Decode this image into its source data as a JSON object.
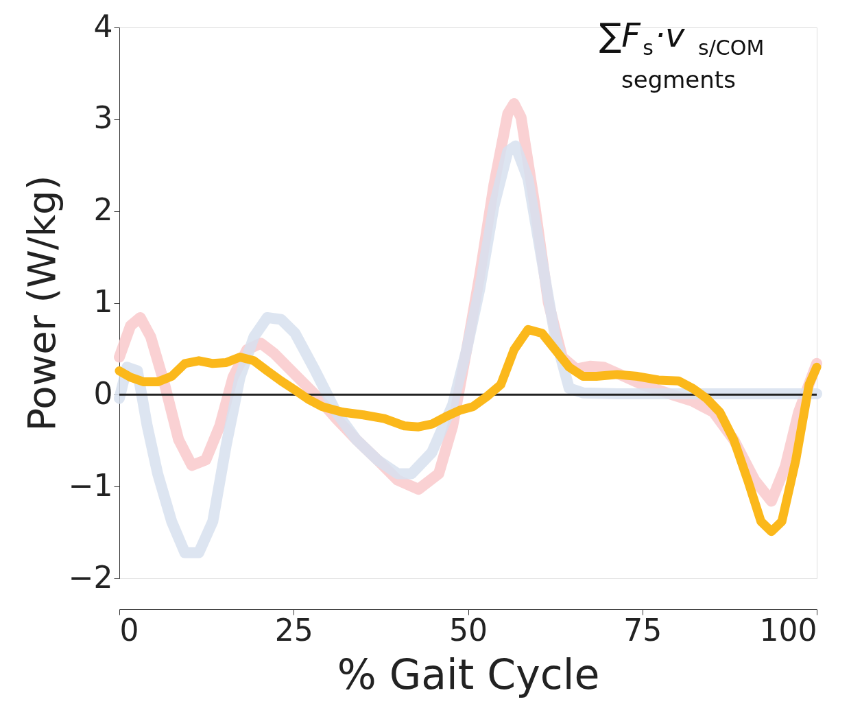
{
  "chart_data": {
    "type": "line",
    "xlabel": "% Gait Cycle",
    "ylabel": "Power (W/kg)",
    "xlim": [
      0,
      100
    ],
    "xticks": [
      0,
      25,
      50,
      75,
      100
    ],
    "ylim": [
      -2,
      4
    ],
    "yticks": [
      -2,
      -1,
      0,
      1,
      2,
      3,
      4
    ],
    "grid": false,
    "marker": "none",
    "line_style": "solid",
    "annotations": [
      "∑F$_{s}$·v$_{s/COM}$",
      "segments"
    ],
    "ref_lines": [
      {
        "axis": "y",
        "value": 0,
        "color": "#222222"
      }
    ],
    "series": [
      {
        "color": "#f9c9cb",
        "x": [
          0,
          1.6,
          3,
          4.5,
          6.5,
          8.5,
          10.4,
          12.4,
          14.4,
          16.3,
          18.3,
          20.3,
          22.2,
          25.2,
          28.1,
          31.1,
          34,
          37,
          39.9,
          42.9,
          45.8,
          47.8,
          49.8,
          51.7,
          53.7,
          55.7,
          56.6,
          57.6,
          59.6,
          61.5,
          63.5,
          65.5,
          67.5,
          69.4,
          72.4,
          75.3,
          79.3,
          82.2,
          85.2,
          88.1,
          91.1,
          93.5,
          95.5,
          97.4,
          100
        ],
        "values": [
          0.41,
          0.75,
          0.84,
          0.63,
          0.11,
          -0.49,
          -0.77,
          -0.71,
          -0.34,
          0.19,
          0.49,
          0.56,
          0.45,
          0.22,
          0,
          -0.26,
          -0.49,
          -0.71,
          -0.93,
          -1.03,
          -0.86,
          -0.34,
          0.49,
          1.31,
          2.28,
          3.06,
          3.17,
          3.02,
          2.05,
          1.01,
          0.41,
          0.28,
          0.31,
          0.3,
          0.2,
          0.1,
          0,
          -0.07,
          -0.19,
          -0.49,
          -0.93,
          -1.16,
          -0.78,
          -0.19,
          0.34
        ]
      },
      {
        "color": "#d7e1ef",
        "x": [
          0,
          1.1,
          2.6,
          4,
          5.5,
          7.5,
          9.4,
          11.4,
          13.4,
          15.3,
          17.3,
          19.3,
          21.2,
          23.2,
          25.2,
          28.1,
          31.1,
          34,
          37,
          39.9,
          41.9,
          44.8,
          47.8,
          49.8,
          51.7,
          53.7,
          55.7,
          56.8,
          58.6,
          60.6,
          62.5,
          64.5,
          66.5,
          71.4,
          81.2,
          91.1,
          100
        ],
        "values": [
          -0.04,
          0.3,
          0.26,
          -0.34,
          -0.86,
          -1.38,
          -1.72,
          -1.72,
          -1.38,
          -0.56,
          0.19,
          0.63,
          0.84,
          0.82,
          0.67,
          0.26,
          -0.19,
          -0.49,
          -0.71,
          -0.86,
          -0.86,
          -0.63,
          -0.11,
          0.49,
          1.16,
          2.05,
          2.65,
          2.71,
          2.35,
          1.46,
          0.63,
          0.07,
          0.02,
          0.01,
          0.01,
          0.01,
          0.01
        ]
      },
      {
        "color": "#fbb81b",
        "x": [
          0,
          1.6,
          3.5,
          5.5,
          7.5,
          9.4,
          11.4,
          13.4,
          15.3,
          17.3,
          19.3,
          21.2,
          23.2,
          25.2,
          27.1,
          29.1,
          32,
          35,
          38,
          40.9,
          42.9,
          44.8,
          46.8,
          48.8,
          50.7,
          52.7,
          54.7,
          56.6,
          58.6,
          60.6,
          62.5,
          64.5,
          66.5,
          68.4,
          71.4,
          74.3,
          77.3,
          80.2,
          82.2,
          84.2,
          86.1,
          88.1,
          90.1,
          92,
          93.5,
          95,
          97,
          98.9,
          100
        ],
        "values": [
          0.26,
          0.19,
          0.14,
          0.14,
          0.2,
          0.34,
          0.37,
          0.34,
          0.35,
          0.41,
          0.37,
          0.26,
          0.15,
          0.05,
          -0.05,
          -0.13,
          -0.19,
          -0.22,
          -0.26,
          -0.34,
          -0.35,
          -0.32,
          -0.24,
          -0.17,
          -0.13,
          -0.02,
          0.11,
          0.49,
          0.71,
          0.67,
          0.49,
          0.3,
          0.2,
          0.2,
          0.22,
          0.2,
          0.16,
          0.15,
          0.07,
          -0.04,
          -0.19,
          -0.49,
          -0.93,
          -1.38,
          -1.49,
          -1.38,
          -0.71,
          0.11,
          0.3
        ]
      }
    ]
  }
}
